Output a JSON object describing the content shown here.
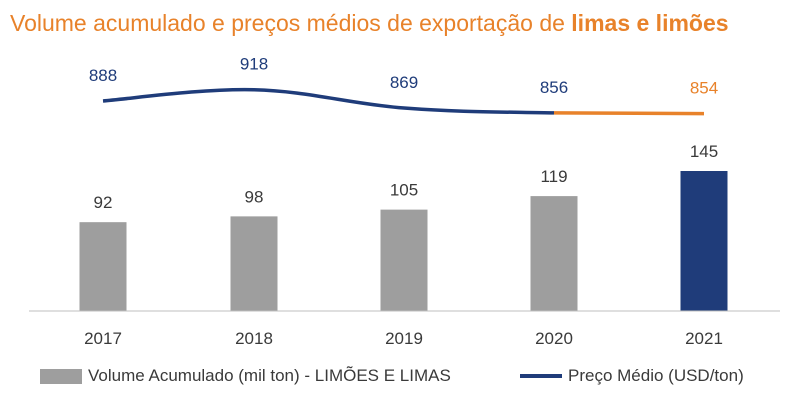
{
  "chart_data": {
    "type": "bar+line",
    "title_prefix": "Volume acumulado e preços médios de exportação de",
    "title_bold": "limas e limões",
    "categories": [
      "2017",
      "2018",
      "2019",
      "2020",
      "2021"
    ],
    "series": [
      {
        "name": "Volume Acumulado (mil ton) - LIMÕES E LIMAS",
        "type": "bar",
        "values": [
          92,
          98,
          105,
          119,
          145
        ],
        "labels": [
          "92",
          "98",
          "105",
          "119",
          "145"
        ],
        "colors": [
          "#9e9e9e",
          "#9e9e9e",
          "#9e9e9e",
          "#9e9e9e",
          "#1f3c7a"
        ]
      },
      {
        "name": "Preço Médio (USD/ton)",
        "type": "line",
        "values": [
          888,
          918,
          869,
          856,
          854
        ],
        "labels": [
          "888",
          "918",
          "869",
          "856",
          "854"
        ],
        "color": "#1f3c7a",
        "highlight_color": "#e8822a"
      }
    ],
    "bar_ylim": [
      0,
      145
    ],
    "line_ylim": [
      800,
      950
    ],
    "grid": false,
    "legend_position": "bottom"
  }
}
